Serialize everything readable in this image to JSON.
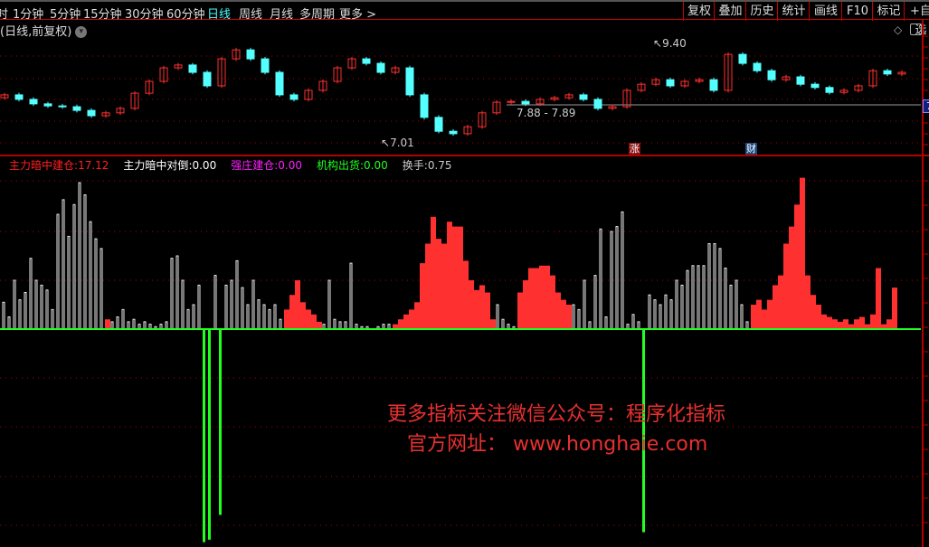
{
  "toolbar": {
    "periods": [
      {
        "label": "时"
      },
      {
        "label": "1分钟"
      },
      {
        "label": "5分钟"
      },
      {
        "label": "15分钟"
      },
      {
        "label": "30分钟"
      },
      {
        "label": "60分钟"
      },
      {
        "label": "日线",
        "active": true
      },
      {
        "label": "周线"
      },
      {
        "label": "月线"
      },
      {
        "label": "多周期"
      },
      {
        "label": "更多 >"
      }
    ],
    "buttons": [
      "复权",
      "叠加",
      "历史",
      "统计",
      "画线",
      "F10",
      "标记",
      "+自选"
    ]
  },
  "chart_title": "(日线,前复权)",
  "price_annotations": {
    "high": "9.40",
    "low": "7.01",
    "range_line": "7.88 - 7.89",
    "right_tag": "7"
  },
  "event_badges": [
    {
      "label": "涨",
      "color": "#8b1010"
    },
    {
      "label": "财",
      "color": "#1a4a80"
    }
  ],
  "indicator_legend": [
    {
      "label": "主力暗中建仓",
      "value": "17.12",
      "color": "#ff2020"
    },
    {
      "label": "主力暗中对倒",
      "value": "0.00",
      "color": "#ffffff"
    },
    {
      "label": "强庄建仓",
      "value": "0.00",
      "color": "#ff20ff"
    },
    {
      "label": "机构出货",
      "value": "0.00",
      "color": "#20ff20"
    },
    {
      "label": "换手",
      "value": "0.75",
      "color": "#cccccc"
    }
  ],
  "watermark": {
    "line1": "更多指标关注微信公众号：程序化指标",
    "line2": "官方网址： www.honghaie.com"
  },
  "colors": {
    "up": "#ff3030",
    "down": "#54ffff",
    "grid": "#b00000",
    "zero_line": "#20ff20",
    "green_bar": "#20ff20"
  },
  "chart_data": [
    {
      "type": "candlestick",
      "first_open": 8.05,
      "closes": [
        8.12,
        8.01,
        7.9,
        7.85,
        7.83,
        7.74,
        7.61,
        7.68,
        7.79,
        8.16,
        8.45,
        8.78,
        8.85,
        8.67,
        8.34,
        9.0,
        9.22,
        9.0,
        8.67,
        8.12,
        8.01,
        8.23,
        8.45,
        8.78,
        9.0,
        8.89,
        8.67,
        8.78,
        8.12,
        7.57,
        7.23,
        7.17,
        7.34,
        7.68,
        7.94,
        7.96,
        7.9,
        8.01,
        8.05,
        8.12,
        8.01,
        7.79,
        7.83,
        8.23,
        8.38,
        8.49,
        8.34,
        8.45,
        8.49,
        8.23,
        9.11,
        8.89,
        8.71,
        8.49,
        8.56,
        8.38,
        8.3,
        8.18,
        8.23,
        8.34,
        8.71,
        8.63,
        8.67
      ],
      "max": 9.4,
      "min": 7.01
    },
    {
      "type": "bar",
      "segments": [
        {
          "kind": "white",
          "values": [
            11,
            5,
            20,
            12,
            15,
            29,
            20,
            18,
            16,
            8,
            47,
            53,
            38,
            51,
            60,
            55,
            44,
            37,
            33
          ]
        },
        {
          "kind": "red",
          "values": [
            4
          ]
        },
        {
          "kind": "white",
          "values": [
            3,
            5,
            8,
            3,
            4,
            2,
            3,
            2,
            1,
            2,
            3
          ]
        },
        {
          "kind": "white",
          "values": [
            29,
            30,
            20,
            8,
            10,
            18
          ]
        },
        {
          "kind": "green",
          "values": [
            -86,
            -85
          ]
        },
        {
          "kind": "white",
          "values": [
            22
          ]
        },
        {
          "kind": "green",
          "values": [
            -75
          ]
        },
        {
          "kind": "white",
          "values": [
            18,
            20,
            28,
            17,
            10,
            20,
            12,
            10,
            8,
            10,
            4
          ]
        },
        {
          "kind": "red",
          "values": [
            8,
            14,
            20,
            11,
            8,
            6,
            3
          ]
        },
        {
          "kind": "white",
          "values": [
            2,
            20,
            4,
            3,
            3,
            27,
            2,
            1,
            1,
            0,
            1,
            2,
            2
          ]
        },
        {
          "kind": "red",
          "values": [
            2,
            4,
            6,
            8,
            11,
            27,
            35,
            46,
            37,
            35,
            44,
            42,
            42,
            28,
            20,
            16,
            18,
            15,
            4
          ]
        },
        {
          "kind": "white",
          "values": [
            10,
            4,
            2,
            1
          ]
        },
        {
          "kind": "red",
          "values": [
            15,
            20,
            25,
            25,
            26,
            26,
            22,
            15,
            12,
            10
          ]
        },
        {
          "kind": "white",
          "values": [
            10,
            8,
            20,
            3,
            22,
            41,
            5,
            40,
            42,
            48,
            2,
            6,
            3
          ]
        },
        {
          "kind": "green",
          "values": [
            -82
          ]
        },
        {
          "kind": "white",
          "values": [
            14,
            12,
            10,
            14,
            12,
            20,
            18,
            24,
            26,
            26,
            26,
            35,
            35,
            33,
            25,
            18,
            20,
            10,
            3
          ]
        },
        {
          "kind": "red",
          "values": [
            10,
            12,
            8,
            12,
            18,
            22,
            35,
            42,
            51,
            62,
            22,
            14,
            10,
            6,
            5,
            4,
            3,
            4,
            2,
            4,
            5,
            2,
            6,
            25,
            2,
            4,
            17
          ]
        }
      ],
      "ylim": [
        -86,
        62
      ]
    }
  ]
}
